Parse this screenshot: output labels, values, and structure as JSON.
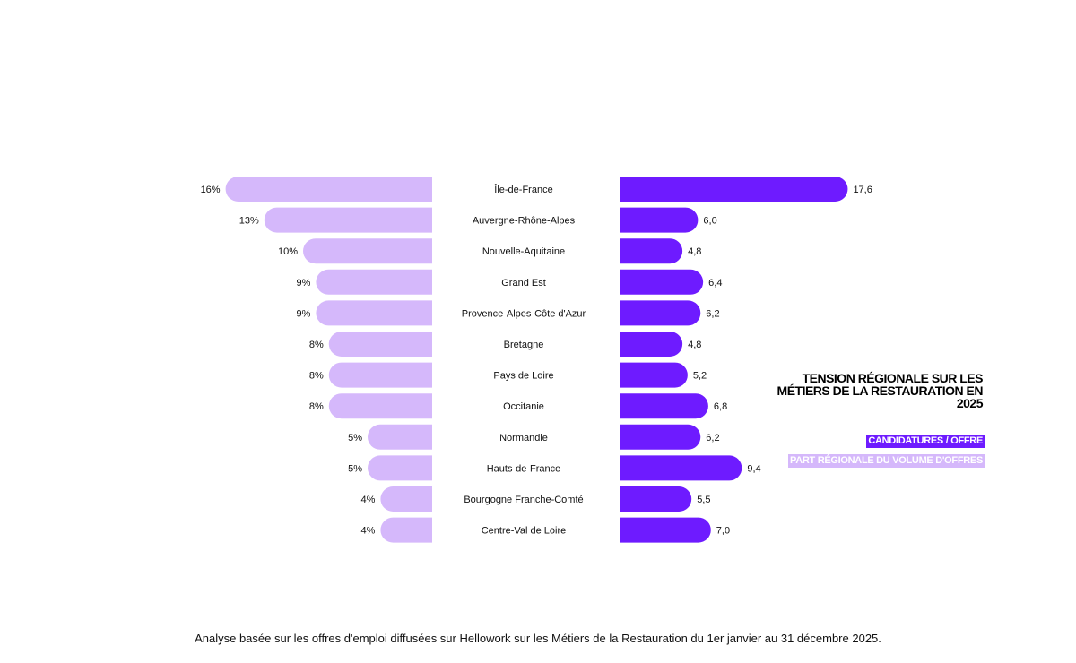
{
  "chart_data": {
    "type": "bar",
    "orientation": "horizontal-diverging",
    "title": "TENSION RÉGIONALE SUR LES MÉTIERS DE LA RESTAURATION EN 2025",
    "categories": [
      "Île-de-France",
      "Auvergne-Rhône-Alpes",
      "Nouvelle-Aquitaine",
      "Grand Est",
      "Provence-Alpes-Côte d'Azur",
      "Bretagne",
      "Pays de Loire",
      "Occitanie",
      "Normandie",
      "Hauts-de-France",
      "Bourgogne Franche-Comté",
      "Centre-Val de Loire"
    ],
    "series": [
      {
        "name": "PART RÉGIONALE DU VOLUME D'OFFRES",
        "side": "left",
        "color": "#d5b8fb",
        "values": [
          16,
          13,
          10,
          9,
          9,
          8,
          8,
          8,
          5,
          5,
          4,
          4
        ],
        "labels": [
          "16%",
          "13%",
          "10%",
          "9%",
          "9%",
          "8%",
          "8%",
          "8%",
          "5%",
          "5%",
          "4%",
          "4%"
        ]
      },
      {
        "name": "CANDIDATURES / OFFRE",
        "side": "right",
        "color": "#6e1bff",
        "values": [
          17.6,
          6.0,
          4.8,
          6.4,
          6.2,
          4.8,
          5.2,
          6.8,
          6.2,
          9.4,
          5.5,
          7.0
        ],
        "labels": [
          "17,6",
          "6,0",
          "4,8",
          "6,4",
          "6,2",
          "4,8",
          "5,2",
          "6,8",
          "6,2",
          "9,4",
          "5,5",
          "7,0"
        ]
      }
    ],
    "grid": false,
    "legend_position": "right"
  },
  "footnote": "Analyse basée sur les offres d'emploi diffusées sur Hellowork sur les Métiers de la Restauration du 1er janvier au 31 décembre 2025."
}
